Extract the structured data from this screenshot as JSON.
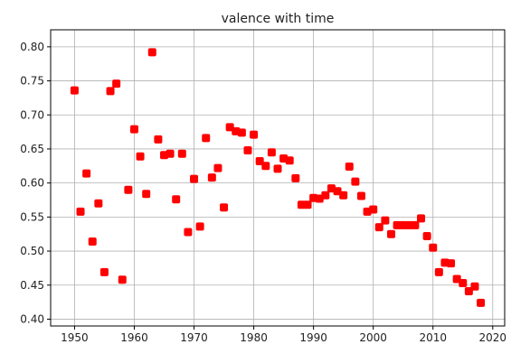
{
  "chart_data": {
    "type": "scatter",
    "title": "valence with time",
    "xlabel": "",
    "ylabel": "",
    "xlim": [
      1946,
      2022
    ],
    "ylim": [
      0.39,
      0.825
    ],
    "xticks": [
      1950,
      1960,
      1970,
      1980,
      1990,
      2000,
      2010,
      2020
    ],
    "yticks": [
      0.4,
      0.45,
      0.5,
      0.55,
      0.6,
      0.65,
      0.7,
      0.75,
      0.8
    ],
    "xtick_labels": [
      "1950",
      "1960",
      "1970",
      "1980",
      "1990",
      "2000",
      "2010",
      "2020"
    ],
    "ytick_labels": [
      "0.40",
      "0.45",
      "0.50",
      "0.55",
      "0.60",
      "0.65",
      "0.70",
      "0.75",
      "0.80"
    ],
    "grid": true,
    "marker_color": "#ff0000",
    "series": [
      {
        "x": [
          1950,
          1951,
          1952,
          1953,
          1954,
          1955,
          1956,
          1957,
          1958,
          1959,
          1960,
          1961,
          1962,
          1963,
          1964,
          1965,
          1966,
          1967,
          1968,
          1969,
          1970,
          1971,
          1972,
          1973,
          1974,
          1975,
          1976,
          1977,
          1978,
          1979,
          1980,
          1981,
          1982,
          1983,
          1984,
          1985,
          1986,
          1987,
          1988,
          1989,
          1990,
          1991,
          1992,
          1993,
          1994,
          1995,
          1996,
          1997,
          1998,
          1999,
          2000,
          2001,
          2002,
          2003,
          2004,
          2005,
          2006,
          2007,
          2008,
          2009,
          2010,
          2011,
          2012,
          2013,
          2014,
          2015,
          2016,
          2017,
          2018
        ],
        "y": [
          0.736,
          0.558,
          0.614,
          0.514,
          0.57,
          0.469,
          0.735,
          0.746,
          0.458,
          0.59,
          0.679,
          0.639,
          0.584,
          0.792,
          0.664,
          0.641,
          0.643,
          0.576,
          0.643,
          0.528,
          0.606,
          0.536,
          0.666,
          0.608,
          0.622,
          0.564,
          0.682,
          0.676,
          0.674,
          0.648,
          0.671,
          0.632,
          0.625,
          0.645,
          0.621,
          0.636,
          0.633,
          0.607,
          0.568,
          0.568,
          0.578,
          0.577,
          0.582,
          0.592,
          0.588,
          0.582,
          0.624,
          0.602,
          0.581,
          0.558,
          0.561,
          0.535,
          0.545,
          0.525,
          0.538,
          0.538,
          0.538,
          0.538,
          0.548,
          0.522,
          0.505,
          0.469,
          0.483,
          0.482,
          0.459,
          0.453,
          0.441,
          0.448,
          0.424
        ]
      }
    ]
  }
}
